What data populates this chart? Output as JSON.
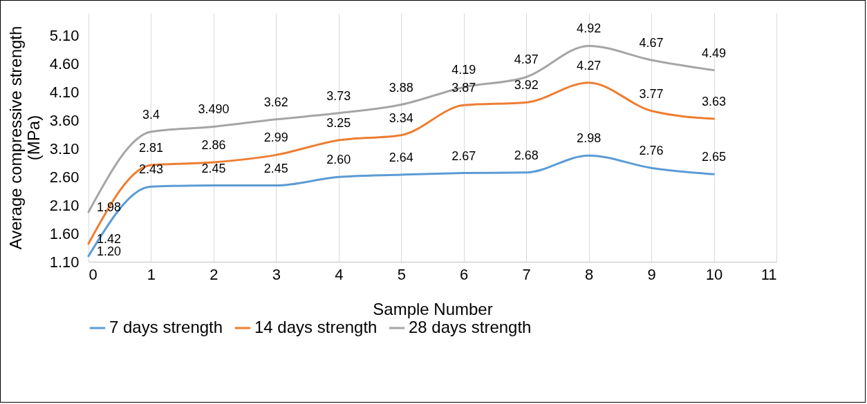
{
  "chart_data": {
    "type": "line",
    "xlabel": "Sample Number",
    "ylabel": "Average compressive strength (MPa)",
    "x": [
      0,
      1,
      2,
      3,
      4,
      5,
      6,
      7,
      8,
      9,
      10
    ],
    "series": [
      {
        "name": "7 days strength",
        "color": "#5b9bd5",
        "values": [
          1.2,
          2.43,
          2.45,
          2.45,
          2.6,
          2.64,
          2.67,
          2.68,
          2.98,
          2.76,
          2.65
        ],
        "value_labels": [
          "1.20",
          "2.43",
          "2.45",
          "2.45",
          "2.60",
          "2.64",
          "2.67",
          "2.68",
          "2.98",
          "2.76",
          "2.65"
        ]
      },
      {
        "name": "14 days strength",
        "color": "#ed7d31",
        "values": [
          1.42,
          2.81,
          2.86,
          2.99,
          3.25,
          3.34,
          3.87,
          3.92,
          4.27,
          3.77,
          3.63
        ],
        "value_labels": [
          "1.42",
          "2.81",
          "2.86",
          "2.99",
          "3.25",
          "3.34",
          "3.87",
          "3.92",
          "4.27",
          "3.77",
          "3.63"
        ]
      },
      {
        "name": "28 days strength",
        "color": "#a5a5a5",
        "values": [
          1.98,
          3.4,
          3.49,
          3.62,
          3.73,
          3.88,
          4.19,
          4.37,
          4.92,
          4.67,
          4.49
        ],
        "value_labels": [
          "1.98",
          "3.4",
          "3.490",
          "3.62",
          "3.73",
          "3.88",
          "4.19",
          "4.37",
          "4.92",
          "4.67",
          "4.49"
        ]
      }
    ],
    "xlim": [
      0,
      11
    ],
    "xticks": [
      0,
      1,
      2,
      3,
      4,
      5,
      6,
      7,
      8,
      9,
      10,
      11
    ],
    "ylim": [
      1.1,
      5.5
    ],
    "yticks": [
      {
        "value": 1.1,
        "label": "1.10"
      },
      {
        "value": 1.6,
        "label": "1.60"
      },
      {
        "value": 2.1,
        "label": "2.10"
      },
      {
        "value": 2.6,
        "label": "2.60"
      },
      {
        "value": 3.1,
        "label": "3.10"
      },
      {
        "value": 3.6,
        "label": "3.60"
      },
      {
        "value": 4.1,
        "label": "4.10"
      },
      {
        "value": 4.6,
        "label": "4.60"
      },
      {
        "value": 5.1,
        "label": "5.10"
      }
    ],
    "grid": "x",
    "legend": "bottom",
    "marker": "none",
    "line_style": "solid"
  }
}
